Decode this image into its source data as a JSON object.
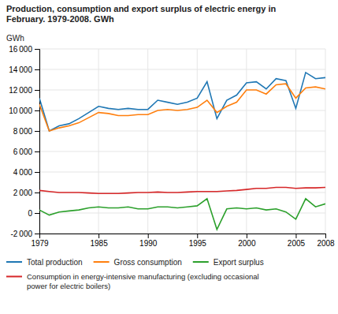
{
  "chart_data": {
    "type": "line",
    "title": "Production, consumption and export surplus of electric energy in\nFebruary. 1979-2008. GWh",
    "y_label": "GWh",
    "x": [
      1979,
      1980,
      1981,
      1982,
      1983,
      1984,
      1985,
      1986,
      1987,
      1988,
      1989,
      1990,
      1991,
      1992,
      1993,
      1994,
      1995,
      1996,
      1997,
      1998,
      1999,
      2000,
      2001,
      2002,
      2003,
      2004,
      2005,
      2006,
      2007,
      2008
    ],
    "series": [
      {
        "name": "Total production",
        "values": [
          11200,
          8000,
          8500,
          8700,
          9200,
          9800,
          10400,
          10200,
          10100,
          10200,
          10100,
          10100,
          11000,
          10800,
          10600,
          10800,
          11200,
          12800,
          9200,
          11000,
          11500,
          12700,
          12800,
          12100,
          13100,
          12900,
          10200,
          13700,
          13100,
          13200
        ]
      },
      {
        "name": "Gross consumption",
        "values": [
          10600,
          8000,
          8300,
          8500,
          8800,
          9300,
          9800,
          9700,
          9500,
          9500,
          9600,
          9600,
          10000,
          10100,
          10000,
          10100,
          10300,
          11000,
          9800,
          10400,
          10800,
          12000,
          12000,
          11600,
          12500,
          12600,
          11200,
          12200,
          12300,
          12100
        ]
      },
      {
        "name": "Export surplus",
        "values": [
          300,
          -200,
          100,
          200,
          300,
          500,
          600,
          500,
          500,
          600,
          400,
          400,
          600,
          600,
          500,
          600,
          700,
          1400,
          -1600,
          400,
          500,
          400,
          500,
          300,
          400,
          100,
          -600,
          1400,
          600,
          900
        ]
      },
      {
        "name": "Consumption in energy-intensive manufacturing (excluding occasional\npower for electric boilers)",
        "values": [
          2200,
          2100,
          2000,
          2000,
          2000,
          1950,
          1900,
          1900,
          1900,
          1950,
          2000,
          2000,
          2050,
          2000,
          2000,
          2050,
          2100,
          2100,
          2100,
          2150,
          2200,
          2300,
          2400,
          2400,
          2500,
          2500,
          2400,
          2450,
          2450,
          2500
        ]
      }
    ],
    "xlim": [
      1979,
      2008
    ],
    "xticks": [
      1979,
      1985,
      1990,
      1995,
      2000,
      2005,
      2008
    ],
    "ylim": [
      -2000,
      16000
    ],
    "yticks": [
      {
        "value": -2000,
        "label": "-2 000"
      },
      0,
      {
        "value": 2000,
        "label": "2 000"
      },
      {
        "value": 4000,
        "label": "4 000"
      },
      {
        "value": 6000,
        "label": "6 000"
      },
      {
        "value": 8000,
        "label": "8 000"
      },
      {
        "value": 10000,
        "label": "10 000"
      },
      {
        "value": 12000,
        "label": "12 000"
      },
      {
        "value": 14000,
        "label": "14 000"
      },
      {
        "value": 16000,
        "label": "16 000"
      }
    ],
    "grid": true,
    "legend": "bottom"
  }
}
